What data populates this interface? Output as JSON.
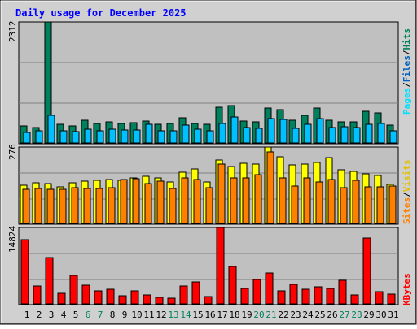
{
  "title": "Daily usage for December 2025",
  "colors": {
    "hits": "#00805c",
    "files": "#00c0ff",
    "pages": "#00e0ff",
    "visits": "#ffff00",
    "sites": "#ff8000",
    "kbytes": "#ff0000",
    "title": "#0000ff",
    "weekend_day": "#00805c",
    "weekday": "#000000",
    "plot_bg": "#c0c0c0",
    "frame": "#d0d0d0"
  },
  "legend": {
    "top": {
      "pages": "Pages",
      "sep1": "/",
      "files": "Files",
      "sep2": "/",
      "hits": "Hits"
    },
    "middle": {
      "sites": "Sites",
      "sep": "/",
      "visits": "Visits"
    },
    "bottom": {
      "kbytes": "KBytes"
    }
  },
  "chart_data": [
    {
      "type": "bar",
      "panel": "hits-files-pages",
      "y_max_label": "2312",
      "ylim": [
        0,
        2312
      ],
      "categories": [
        "1",
        "2",
        "3",
        "4",
        "5",
        "6",
        "7",
        "8",
        "9",
        "10",
        "11",
        "12",
        "13",
        "14",
        "15",
        "16",
        "17",
        "18",
        "19",
        "20",
        "21",
        "22",
        "23",
        "24",
        "25",
        "26",
        "27",
        "28",
        "29",
        "30",
        "31"
      ],
      "weekend_days": [
        6,
        7,
        13,
        14,
        20,
        21,
        27,
        28
      ],
      "series": [
        {
          "key": "hits",
          "values": [
            330,
            300,
            2312,
            350,
            320,
            440,
            370,
            410,
            380,
            390,
            420,
            350,
            370,
            480,
            370,
            350,
            690,
            710,
            420,
            400,
            660,
            640,
            430,
            520,
            660,
            440,
            410,
            410,
            610,
            570,
            340
          ]
        },
        {
          "key": "files",
          "values": [
            200,
            230,
            530,
            230,
            220,
            270,
            240,
            260,
            250,
            250,
            360,
            240,
            240,
            340,
            260,
            240,
            370,
            500,
            300,
            280,
            460,
            450,
            280,
            350,
            460,
            300,
            310,
            300,
            360,
            370,
            230
          ]
        },
        {
          "key": "pages",
          "values": [
            0,
            0,
            0,
            0,
            0,
            0,
            0,
            0,
            0,
            0,
            0,
            0,
            0,
            0,
            0,
            0,
            0,
            0,
            0,
            0,
            0,
            0,
            0,
            0,
            0,
            0,
            0,
            0,
            0,
            0,
            0
          ]
        }
      ]
    },
    {
      "type": "bar",
      "panel": "visits-sites",
      "y_max_label": "276",
      "ylim": [
        0,
        276
      ],
      "categories": [
        "1",
        "2",
        "3",
        "4",
        "5",
        "6",
        "7",
        "8",
        "9",
        "10",
        "11",
        "12",
        "13",
        "14",
        "15",
        "16",
        "17",
        "18",
        "19",
        "20",
        "21",
        "22",
        "23",
        "24",
        "25",
        "26",
        "27",
        "28",
        "29",
        "30",
        "31"
      ],
      "series": [
        {
          "key": "visits",
          "values": [
            137,
            147,
            145,
            133,
            148,
            152,
            157,
            158,
            156,
            163,
            170,
            165,
            150,
            185,
            197,
            150,
            230,
            205,
            218,
            215,
            276,
            240,
            210,
            215,
            220,
            238,
            195,
            187,
            180,
            172,
            140
          ]
        },
        {
          "key": "sites",
          "values": [
            122,
            127,
            124,
            123,
            130,
            127,
            125,
            130,
            160,
            161,
            145,
            152,
            125,
            163,
            160,
            130,
            215,
            164,
            165,
            175,
            257,
            165,
            134,
            164,
            150,
            160,
            128,
            155,
            132,
            132,
            134
          ]
        }
      ]
    },
    {
      "type": "bar",
      "panel": "kbytes",
      "y_max_label": "14824",
      "ylim": [
        0,
        14824
      ],
      "categories": [
        "1",
        "2",
        "3",
        "4",
        "5",
        "6",
        "7",
        "8",
        "9",
        "10",
        "11",
        "12",
        "13",
        "14",
        "15",
        "16",
        "17",
        "18",
        "19",
        "20",
        "21",
        "22",
        "23",
        "24",
        "25",
        "26",
        "27",
        "28",
        "29",
        "30",
        "31"
      ],
      "series": [
        {
          "key": "kbytes",
          "values": [
            12400,
            3400,
            9000,
            2000,
            5500,
            3600,
            2500,
            2800,
            1600,
            2600,
            1700,
            1300,
            1100,
            3400,
            4200,
            1400,
            14824,
            7200,
            3000,
            4800,
            6000,
            2600,
            3800,
            2800,
            3300,
            3000,
            4600,
            1700,
            12700,
            2300,
            1900
          ]
        }
      ]
    }
  ]
}
